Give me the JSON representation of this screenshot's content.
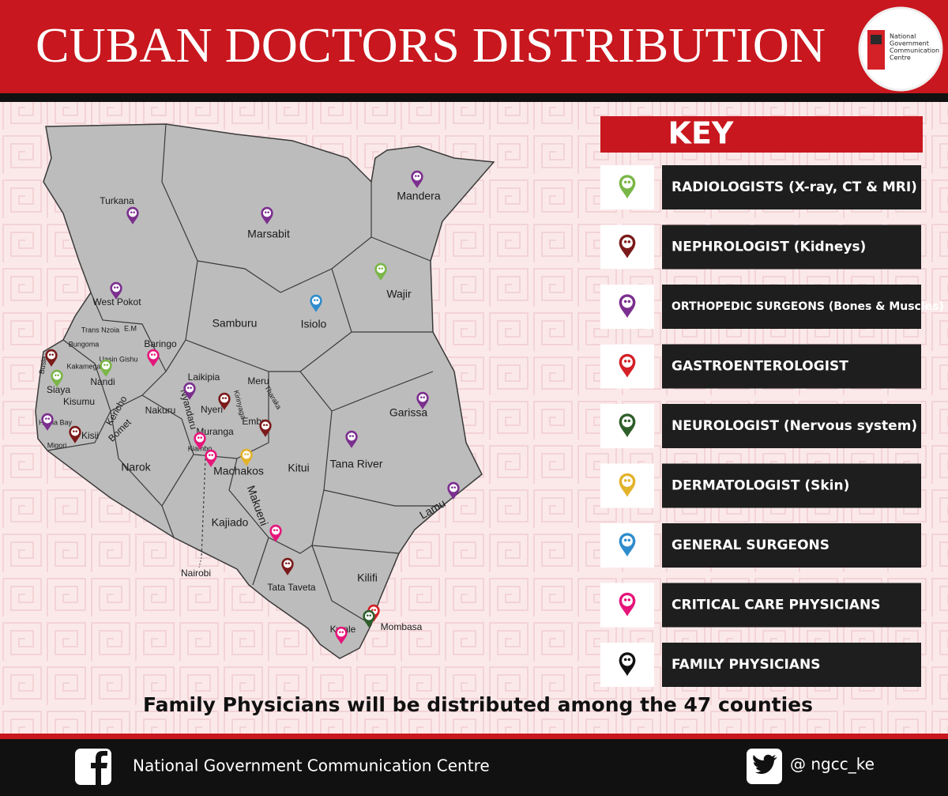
{
  "header": {
    "title": "CUBAN DOCTORS DISTRIBUTION",
    "logo_text": [
      "National",
      "Government",
      "Communication",
      "Centre"
    ]
  },
  "map": {
    "counties": [
      "Turkana",
      "Marsabit",
      "Mandera",
      "Wajir",
      "West Pokot",
      "Samburu",
      "Isiolo",
      "Trans Nzoia",
      "E.M",
      "Baringo",
      "Bungoma",
      "Uasin Gishu",
      "Kakamega",
      "Busia",
      "Siaya",
      "Nandi",
      "Laikipia",
      "Meru",
      "Tharaka",
      "Kisumu",
      "Kericho",
      "Nakuru",
      "Nyeri",
      "Kirinyaga",
      "Embu",
      "Homa Bay",
      "Kisii",
      "Bomet",
      "Nyandaru",
      "Muranga",
      "Migori",
      "Kiambo",
      "Machakos",
      "Narok",
      "Kitui",
      "Garissa",
      "Tana River",
      "Lamu",
      "Makueni",
      "Kajiado",
      "Tata Taveta",
      "Kilifi",
      "Kwale",
      "Mombasa"
    ],
    "callout": "Nairobi"
  },
  "key": {
    "title": "KEY",
    "items": [
      "RADIOLOGISTS (X-ray, CT & MRI)",
      "NEPHROLOGIST (Kidneys)",
      "ORTHOPEDIC SURGEONS (Bones & Muscles)",
      "GASTROENTEROLOGIST",
      "NEUROLOGIST (Nervous system)",
      "DERMATOLOGIST (Skin)",
      "GENERAL SURGEONS",
      "CRITICAL CARE PHYSICIANS",
      "FAMILY PHYSICIANS"
    ]
  },
  "note": "Family Physicians will be distributed among the 47 counties",
  "footer": {
    "facebook": "National Government Communication Centre",
    "twitter": "@ ngcc_ke"
  }
}
